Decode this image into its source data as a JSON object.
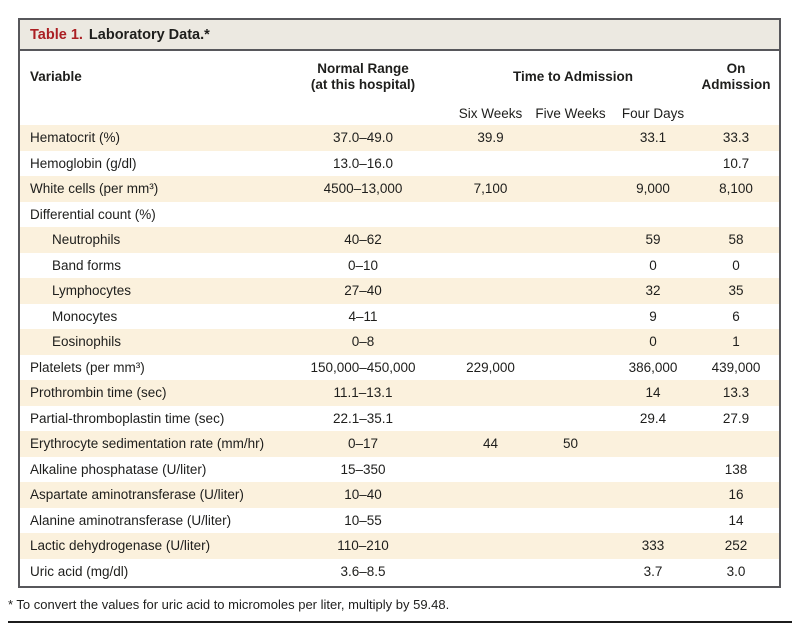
{
  "title": {
    "label": "Table 1.",
    "text": "Laboratory Data.*"
  },
  "colors": {
    "accent_red": "#ab1f23",
    "stripe_beige": "#fbf1dd",
    "title_bar_bg": "#ece9e1",
    "border_gray": "#57575b"
  },
  "table": {
    "header": {
      "variable": "Variable",
      "normal_range_line1": "Normal Range",
      "normal_range_line2": "(at this hospital)",
      "time_to_admission": "Time to Admission",
      "on_admission": "On Admission",
      "sub_columns": [
        "Six Weeks",
        "Five Weeks",
        "Four Days"
      ]
    },
    "rows": [
      {
        "label": "Hematocrit (%)",
        "indent": false,
        "normal_range": "37.0–49.0",
        "six_weeks": "39.9",
        "five_weeks": "",
        "four_days": "33.1",
        "on_admission": "33.3"
      },
      {
        "label": "Hemoglobin (g/dl)",
        "indent": false,
        "normal_range": "13.0–16.0",
        "six_weeks": "",
        "five_weeks": "",
        "four_days": "",
        "on_admission": "10.7"
      },
      {
        "label": "White cells (per mm³)",
        "indent": false,
        "normal_range": "4500–13,000",
        "six_weeks": "7,100",
        "five_weeks": "",
        "four_days": "9,000",
        "on_admission": "8,100"
      },
      {
        "label": "Differential count (%)",
        "indent": false,
        "normal_range": "",
        "six_weeks": "",
        "five_weeks": "",
        "four_days": "",
        "on_admission": ""
      },
      {
        "label": "Neutrophils",
        "indent": true,
        "normal_range": "40–62",
        "six_weeks": "",
        "five_weeks": "",
        "four_days": "59",
        "on_admission": "58"
      },
      {
        "label": "Band forms",
        "indent": true,
        "normal_range": "0–10",
        "six_weeks": "",
        "five_weeks": "",
        "four_days": "0",
        "on_admission": "0"
      },
      {
        "label": "Lymphocytes",
        "indent": true,
        "normal_range": "27–40",
        "six_weeks": "",
        "five_weeks": "",
        "four_days": "32",
        "on_admission": "35"
      },
      {
        "label": "Monocytes",
        "indent": true,
        "normal_range": "4–11",
        "six_weeks": "",
        "five_weeks": "",
        "four_days": "9",
        "on_admission": "6"
      },
      {
        "label": "Eosinophils",
        "indent": true,
        "normal_range": "0–8",
        "six_weeks": "",
        "five_weeks": "",
        "four_days": "0",
        "on_admission": "1"
      },
      {
        "label": "Platelets (per mm³)",
        "indent": false,
        "normal_range": "150,000–450,000",
        "six_weeks": "229,000",
        "five_weeks": "",
        "four_days": "386,000",
        "on_admission": "439,000"
      },
      {
        "label": "Prothrombin time (sec)",
        "indent": false,
        "normal_range": "11.1–13.1",
        "six_weeks": "",
        "five_weeks": "",
        "four_days": "14",
        "on_admission": "13.3"
      },
      {
        "label": "Partial-thromboplastin time (sec)",
        "indent": false,
        "normal_range": "22.1–35.1",
        "six_weeks": "",
        "five_weeks": "",
        "four_days": "29.4",
        "on_admission": "27.9"
      },
      {
        "label": "Erythrocyte sedimentation rate (mm/hr)",
        "indent": false,
        "normal_range": "0–17",
        "six_weeks": "44",
        "five_weeks": "50",
        "four_days": "",
        "on_admission": ""
      },
      {
        "label": "Alkaline phosphatase (U/liter)",
        "indent": false,
        "normal_range": "15–350",
        "six_weeks": "",
        "five_weeks": "",
        "four_days": "",
        "on_admission": "138"
      },
      {
        "label": "Aspartate aminotransferase (U/liter)",
        "indent": false,
        "normal_range": "10–40",
        "six_weeks": "",
        "five_weeks": "",
        "four_days": "",
        "on_admission": "16"
      },
      {
        "label": "Alanine aminotransferase (U/liter)",
        "indent": false,
        "normal_range": "10–55",
        "six_weeks": "",
        "five_weeks": "",
        "four_days": "",
        "on_admission": "14"
      },
      {
        "label": "Lactic dehydrogenase (U/liter)",
        "indent": false,
        "normal_range": "110–210",
        "six_weeks": "",
        "five_weeks": "",
        "four_days": "333",
        "on_admission": "252"
      },
      {
        "label": "Uric acid (mg/dl)",
        "indent": false,
        "normal_range": "3.6–8.5",
        "six_weeks": "",
        "five_weeks": "",
        "four_days": "3.7",
        "on_admission": "3.0"
      }
    ]
  },
  "footnote": "* To convert the values for uric acid to micromoles per liter, multiply by 59.48."
}
